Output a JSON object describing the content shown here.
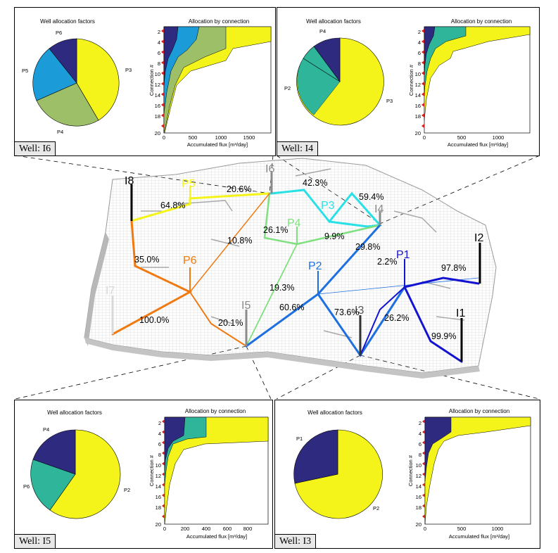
{
  "panels": [
    {
      "well_label": "Well: I6",
      "pie_title": "Well allocation factors",
      "area_title": "Allocation by connection",
      "pie_labels": [
        "P6",
        "P5",
        "P3",
        "P4"
      ],
      "xlabel": "Accumulated flux [m³/day]",
      "ylabel": "Connection #",
      "xticks": [
        "0",
        "500",
        "1000",
        "1500"
      ]
    },
    {
      "well_label": "Well: I4",
      "pie_title": "Well allocation factors",
      "area_title": "Allocation by connection",
      "pie_labels": [
        "P4",
        "P2",
        "P3"
      ],
      "xlabel": "Accumulated flux [m³/day]",
      "ylabel": "Connection #",
      "xticks": [
        "0",
        "500",
        "1000"
      ]
    },
    {
      "well_label": "Well: I5",
      "pie_title": "Well allocation factors",
      "area_title": "Allocation by connection",
      "pie_labels": [
        "P4",
        "P6",
        "P2"
      ],
      "xlabel": "Accumulated flux [m³/day]",
      "ylabel": "Connection #",
      "xticks": [
        "0",
        "200",
        "400",
        "600",
        "800"
      ]
    },
    {
      "well_label": "Well: I3",
      "pie_title": "Well allocation factors",
      "area_title": "Allocation by connection",
      "pie_labels": [
        "P1",
        "P2"
      ],
      "xlabel": "Accumulated flux [m³/day]",
      "ylabel": "Connection #",
      "xticks": [
        "0",
        "500",
        "1000"
      ]
    }
  ],
  "yticks": [
    "2",
    "4",
    "6",
    "8",
    "10",
    "12",
    "14",
    "16",
    "18",
    "20"
  ],
  "colors": {
    "navy": "#2e2a7f",
    "teal": "#2fb59a",
    "blue": "#1b9bd7",
    "sage": "#9cbf68",
    "yellow": "#f4f41a",
    "orange": "#f07a12",
    "lightgreen": "#7fe07f",
    "cyan": "#28e0e6",
    "royal": "#1e6fe0",
    "darkblue": "#1414d0",
    "gray": "#8a8a8a"
  },
  "map": {
    "wells": {
      "I8": "I8",
      "P5": "P5",
      "I6": "I6",
      "P3": "P3",
      "I4": "I4",
      "P4": "P4",
      "P6": "P6",
      "P2": "P2",
      "P1": "P1",
      "I2": "I2",
      "I5": "I5",
      "I3": "I3",
      "I1": "I1",
      "I7": "I7"
    },
    "percents": [
      "64.8%",
      "20.6%",
      "42.3%",
      "59.4%",
      "26.1%",
      "9.9%",
      "10.8%",
      "29.8%",
      "35.0%",
      "2.2%",
      "97.8%",
      "19.3%",
      "60.6%",
      "73.6%",
      "26.2%",
      "100.0%",
      "20.1%",
      "99.9%"
    ]
  }
}
